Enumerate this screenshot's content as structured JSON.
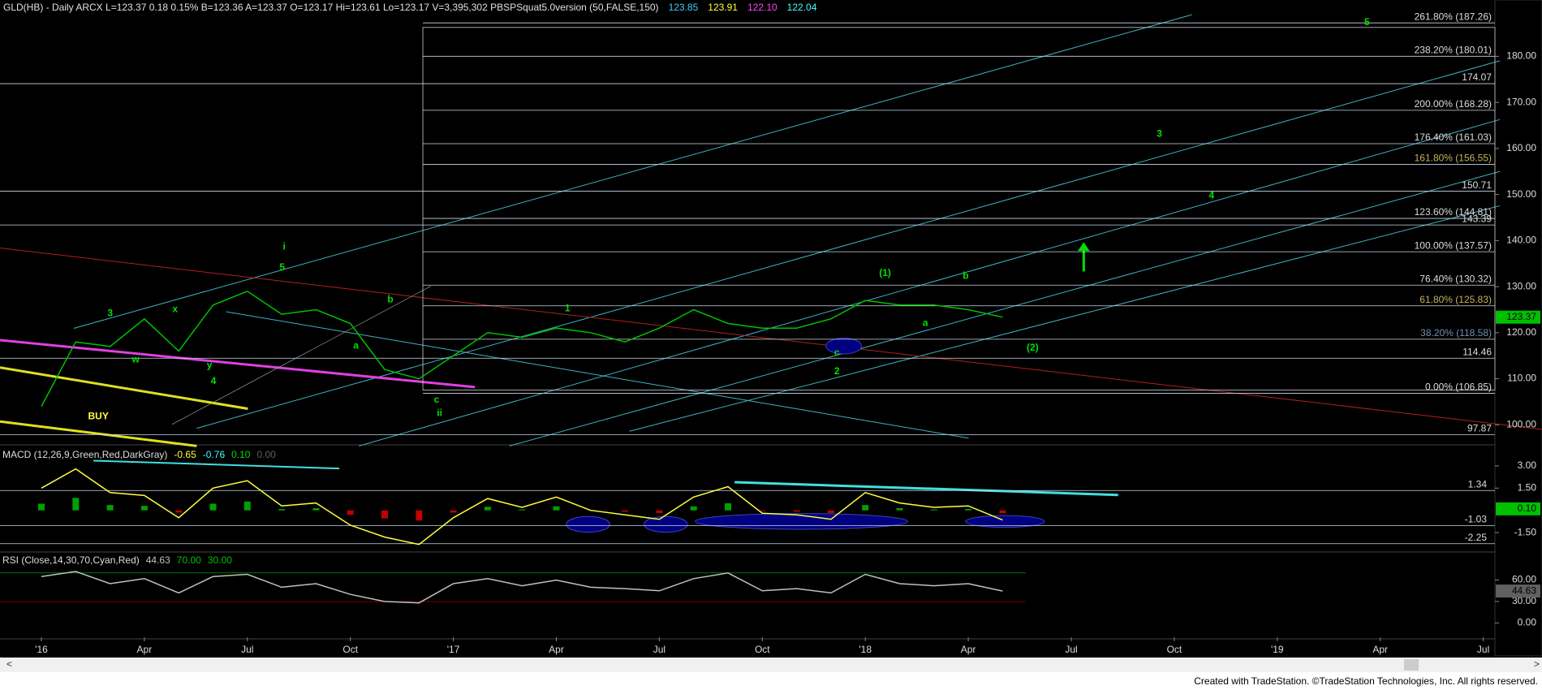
{
  "header": [
    {
      "text": "GLD(HB) - Daily  ARCX  L=123.37  0.18  0.15%  B=123.36  A=123.37  O=123.17  Hi=123.61  Lo=123.17  V=3,395,302  PBSPSquat5.0version (50,FALSE,150)",
      "color": "#e0e0e0"
    },
    {
      "text": "123.85",
      "color": "#40c8ff"
    },
    {
      "text": "123.91",
      "color": "#ffff40"
    },
    {
      "text": "122.10",
      "color": "#ff40ff"
    },
    {
      "text": "122.04",
      "color": "#40ffff"
    }
  ],
  "footer": "Created with TradeStation. ©TradeStation Technologies, Inc. All rights reserved.",
  "chart_data": [
    {
      "type": "line",
      "name": "price",
      "color": "#00c000",
      "values": [
        104,
        118,
        117,
        123,
        116,
        126,
        129,
        124,
        125,
        122,
        112,
        110,
        115,
        120,
        119,
        121,
        120,
        118,
        121,
        125,
        122,
        121,
        121,
        123,
        127,
        126,
        126,
        125,
        123.37,
        null,
        null,
        null,
        null,
        null,
        null,
        null,
        null,
        null,
        null,
        null,
        null,
        null,
        null
      ],
      "ylim": [
        96,
        188
      ],
      "yticks": [
        {
          "value": 100,
          "label": "100.00"
        },
        {
          "value": 110,
          "label": "110.00"
        },
        {
          "value": 120,
          "label": "120.00"
        },
        {
          "value": 130,
          "label": "130.00"
        },
        {
          "value": 140,
          "label": "140.00"
        },
        {
          "value": 150,
          "label": "150.00"
        },
        {
          "value": 160,
          "label": "160.00"
        },
        {
          "value": 170,
          "label": "170.00"
        },
        {
          "value": 180,
          "label": "180.00"
        }
      ],
      "last_tag": 123.37,
      "levels": [
        {
          "value": 187.26,
          "label": "261.80% (187.26)"
        },
        {
          "value": 180.01,
          "label": "238.20% (180.01)"
        },
        {
          "value": 174.07,
          "label": "174.07"
        },
        {
          "value": 168.28,
          "label": "200.00% (168.28)"
        },
        {
          "value": 161.03,
          "label": "176.40% (161.03)"
        },
        {
          "value": 156.55,
          "label": "161.80% (156.55)",
          "color": "#c8b060"
        },
        {
          "value": 150.71,
          "label": "150.71"
        },
        {
          "value": 144.81,
          "label": "123.60% (144.81)"
        },
        {
          "value": 143.39,
          "label": "143.39"
        },
        {
          "value": 137.57,
          "label": "100.00% (137.57)"
        },
        {
          "value": 130.32,
          "label": "76.40% (130.32)"
        },
        {
          "value": 125.83,
          "label": "61.80% (125.83)",
          "color": "#c8b060"
        },
        {
          "value": 118.58,
          "label": "38.20% (118.58)",
          "color": "#7090b0"
        },
        {
          "value": 114.46,
          "label": "114.46"
        },
        {
          "value": 106.85,
          "label": "0.00% (106.85)"
        },
        {
          "value": 97.87,
          "label": "97.87"
        }
      ],
      "annotations": [
        "i",
        "5",
        "3",
        "x",
        "w",
        "y",
        "4",
        "BUY",
        "1",
        "b",
        "a",
        "c",
        "ii",
        "2",
        "(1)",
        "(2)",
        "3",
        "4",
        "5",
        "a",
        "b",
        "c"
      ]
    },
    {
      "type": "line",
      "name": "macd",
      "title": "MACD (12,26,9,Green,Red,DarkGray)",
      "readouts": [
        {
          "text": "-0.65",
          "color": "#ffff40"
        },
        {
          "text": "-0.76",
          "color": "#40ffff"
        },
        {
          "text": "0.10",
          "color": "#00e000"
        },
        {
          "text": "0.00",
          "color": "#606060"
        }
      ],
      "color": "#ffff40",
      "values": [
        1.5,
        2.8,
        1.2,
        1.0,
        -0.5,
        1.5,
        2.0,
        0.3,
        0.5,
        -1.0,
        -1.8,
        -2.3,
        -0.5,
        0.8,
        0.2,
        0.9,
        0.0,
        -0.3,
        -0.6,
        0.9,
        1.6,
        -0.2,
        -0.3,
        -0.6,
        1.2,
        0.5,
        0.2,
        0.3,
        -0.65,
        null,
        null,
        null,
        null,
        null,
        null,
        null,
        null,
        null,
        null,
        null,
        null,
        null,
        null
      ],
      "ylim": [
        -2.7,
        4.2
      ],
      "yticks": [
        {
          "value": 3,
          "label": "3.00"
        },
        {
          "value": 1.5,
          "label": "1.50"
        },
        {
          "value": -1.5,
          "label": "-1.50"
        }
      ],
      "last_tag": {
        "value": 0.1,
        "label": "0.10"
      },
      "levels": [
        {
          "value": 1.34,
          "label": "1.34"
        },
        {
          "value": -1.03,
          "label": "-1.03"
        },
        {
          "value": -2.25,
          "label": "-2.25"
        }
      ]
    },
    {
      "type": "line",
      "name": "rsi",
      "title": "RSI (Close,14,30,70,Cyan,Red)",
      "readouts": [
        {
          "text": "44.63",
          "color": "#c0c0c0"
        },
        {
          "text": "70.00",
          "color": "#00c000"
        },
        {
          "text": "30.00",
          "color": "#00c000"
        }
      ],
      "color": "#c0c0c0",
      "values": [
        65,
        72,
        55,
        62,
        42,
        65,
        68,
        50,
        55,
        40,
        30,
        28,
        55,
        62,
        52,
        60,
        50,
        48,
        45,
        62,
        70,
        45,
        48,
        42,
        68,
        55,
        52,
        55,
        44.63,
        null,
        null,
        null,
        null,
        null,
        null,
        null,
        null,
        null,
        null,
        null,
        null,
        null,
        null
      ],
      "ylim": [
        -20,
        97
      ],
      "yticks": [
        {
          "value": 60,
          "label": "60.00"
        },
        {
          "value": 30,
          "label": "30.00"
        },
        {
          "value": 0,
          "label": "0.00"
        }
      ],
      "last_tag": 44.63,
      "categories": [
        "'16",
        null,
        null,
        "Apr",
        null,
        null,
        "Jul",
        null,
        null,
        "Oct",
        null,
        null,
        "'17",
        null,
        null,
        "Apr",
        null,
        null,
        "Jul",
        null,
        null,
        "Oct",
        null,
        null,
        "'18",
        null,
        null,
        "Apr",
        null,
        null,
        "Jul",
        null,
        null,
        "Oct",
        null,
        null,
        "'19",
        null,
        null,
        "Apr",
        null,
        null,
        "Jul"
      ]
    }
  ]
}
